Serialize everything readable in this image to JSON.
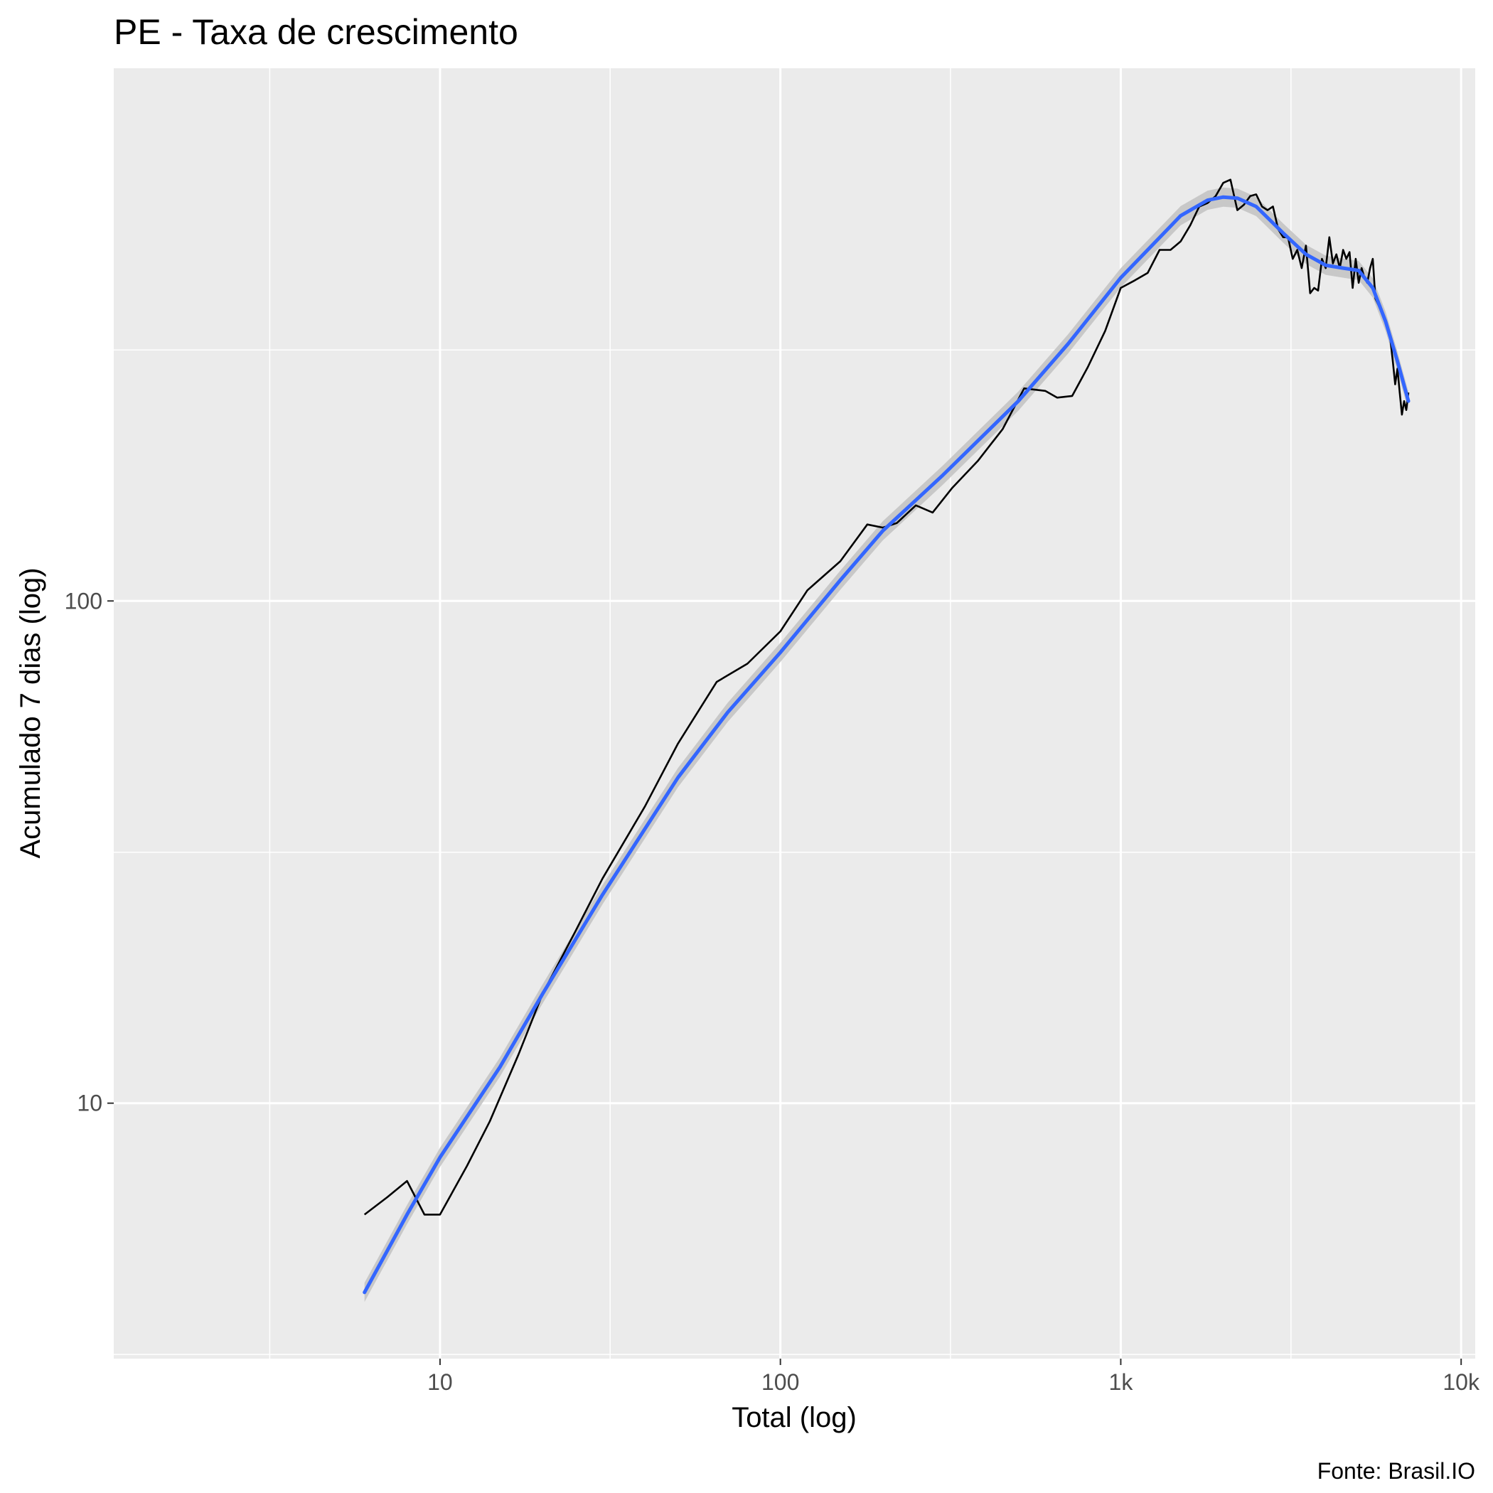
{
  "chart_data": {
    "type": "line",
    "title": "PE - Taxa de crescimento",
    "xlabel": "Total (log)",
    "ylabel": "Acumulado 7 dias (log)",
    "caption": "Fonte: Brasil.IO",
    "x_scale": "log10",
    "y_scale": "log10",
    "xlim": [
      1.1,
      11000
    ],
    "ylim": [
      3.1,
      1150
    ],
    "x_ticks": [
      10,
      100,
      1000,
      10000
    ],
    "x_tick_labels": [
      "10",
      "100",
      "1k",
      "10k"
    ],
    "x_minor_ticks": [
      3.16,
      31.6,
      316,
      3162
    ],
    "y_ticks": [
      10,
      100
    ],
    "y_tick_labels": [
      "10",
      "100"
    ],
    "y_minor_ticks": [
      3.16,
      31.6,
      316
    ],
    "grid": true,
    "legend": "none",
    "colors": {
      "panel": "#ebebeb",
      "grid": "#ffffff",
      "raw_line": "#000000",
      "smooth_line": "#3366ff",
      "confidence_band": "#c4c4c4"
    },
    "series": [
      {
        "kind": "raw",
        "x": [
          6,
          7,
          8,
          9,
          10,
          12,
          14,
          17,
          20,
          25,
          30,
          40,
          50,
          65,
          80,
          100,
          120,
          150,
          180,
          200,
          220,
          250,
          280,
          320,
          380,
          450,
          520,
          600,
          650,
          720,
          800,
          900,
          1000,
          1100,
          1200,
          1300,
          1400,
          1500,
          1600,
          1700,
          1800,
          1900,
          2000,
          2100,
          2200,
          2300,
          2400,
          2500,
          2600,
          2700,
          2800,
          2900,
          3000,
          3100,
          3200,
          3300,
          3400,
          3500,
          3600,
          3700,
          3800,
          3900,
          4000,
          4100,
          4200,
          4300,
          4400,
          4500,
          4600,
          4700,
          4800,
          4900,
          5000,
          5100,
          5200,
          5300,
          5400,
          5500,
          5600,
          5700,
          5800,
          5900,
          6000,
          6100,
          6200,
          6300,
          6400,
          6500,
          6600,
          6700,
          6800,
          6900,
          7000
        ],
        "y": [
          6,
          6.5,
          7,
          6,
          6,
          7.5,
          9.2,
          12.5,
          16.5,
          22,
          28,
          39,
          52,
          69,
          75,
          87,
          105,
          120,
          142,
          140,
          143,
          155,
          150,
          168,
          190,
          220,
          265,
          262,
          254,
          256,
          292,
          345,
          420,
          435,
          450,
          500,
          500,
          520,
          560,
          610,
          620,
          640,
          680,
          690,
          600,
          615,
          640,
          645,
          610,
          600,
          610,
          550,
          530,
          530,
          480,
          500,
          460,
          510,
          410,
          420,
          415,
          480,
          460,
          530,
          470,
          490,
          460,
          500,
          480,
          495,
          420,
          480,
          430,
          460,
          440,
          430,
          460,
          480,
          400,
          390,
          380,
          370,
          360,
          350,
          330,
          300,
          270,
          290,
          260,
          235,
          250,
          240,
          260
        ]
      },
      {
        "kind": "smooth",
        "x": [
          6,
          8,
          10,
          15,
          20,
          30,
          50,
          70,
          100,
          150,
          200,
          300,
          500,
          700,
          1000,
          1200,
          1500,
          1800,
          2000,
          2200,
          2500,
          3000,
          3500,
          4000,
          4500,
          5000,
          5500,
          6000,
          6500,
          7000
        ],
        "y": [
          4.2,
          6.0,
          7.8,
          11.8,
          16.5,
          26.0,
          44.5,
          60.0,
          79.0,
          110.0,
          138.0,
          178.0,
          250.0,
          325.0,
          440.0,
          500.0,
          585.0,
          628.0,
          637.0,
          634.0,
          610.0,
          540.0,
          490.0,
          466.0,
          460.0,
          455.0,
          420.0,
          360.0,
          300.0,
          250.0
        ]
      }
    ]
  }
}
